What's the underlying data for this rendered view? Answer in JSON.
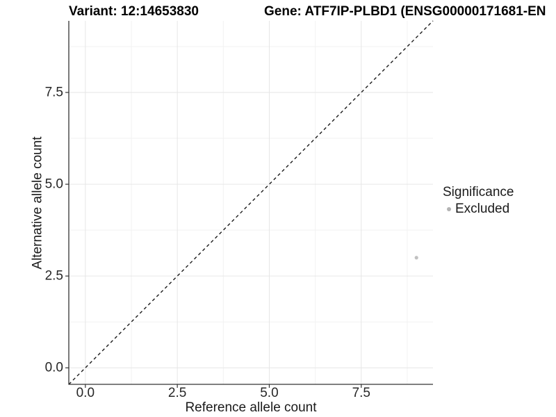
{
  "figure": {
    "title_variant": "Variant: 12:14653830",
    "title_gene": "Gene: ATF7IP-PLBD1 (ENSG00000171681-EN"
  },
  "chart_data": {
    "type": "scatter",
    "xlabel": "Reference allele count",
    "ylabel": "Alternative allele count",
    "xlim": [
      -0.45,
      9.45
    ],
    "ylim": [
      -0.45,
      9.45
    ],
    "grid": true,
    "x_ticks": {
      "values": [
        0,
        2.5,
        5,
        7.5
      ],
      "labels": [
        "0.0",
        "2.5",
        "5.0",
        "7.5"
      ]
    },
    "y_ticks": {
      "values": [
        0,
        2.5,
        5,
        7.5
      ],
      "labels": [
        "0.0",
        "2.5",
        "5.0",
        "7.5"
      ]
    },
    "x_minor_ticks": [
      1.25,
      3.75,
      6.25,
      8.75
    ],
    "y_minor_ticks": [
      1.25,
      3.75,
      6.25,
      8.75
    ],
    "identity_line": {
      "style": "dashed",
      "slope": 1,
      "intercept": 0
    },
    "series": [
      {
        "name": "Excluded",
        "color": "#c1c1c1",
        "marker": "circle",
        "points": [
          {
            "x": 9,
            "y": 3
          }
        ]
      }
    ],
    "legend": {
      "title": "Significance",
      "position": "right",
      "entries": [
        {
          "label": "Excluded",
          "color": "#b3b3b3",
          "marker": "circle"
        }
      ]
    }
  },
  "colors": {
    "background": "#ffffff",
    "grid_major": "#e6e6e6",
    "grid_minor": "#f2f2f2",
    "axis_line": "#333333",
    "tick_mark": "#333333",
    "identity_line": "#1a1a1a",
    "title_text": "#000000",
    "label_text": "#1a1a1a",
    "tick_text": "#262626"
  }
}
